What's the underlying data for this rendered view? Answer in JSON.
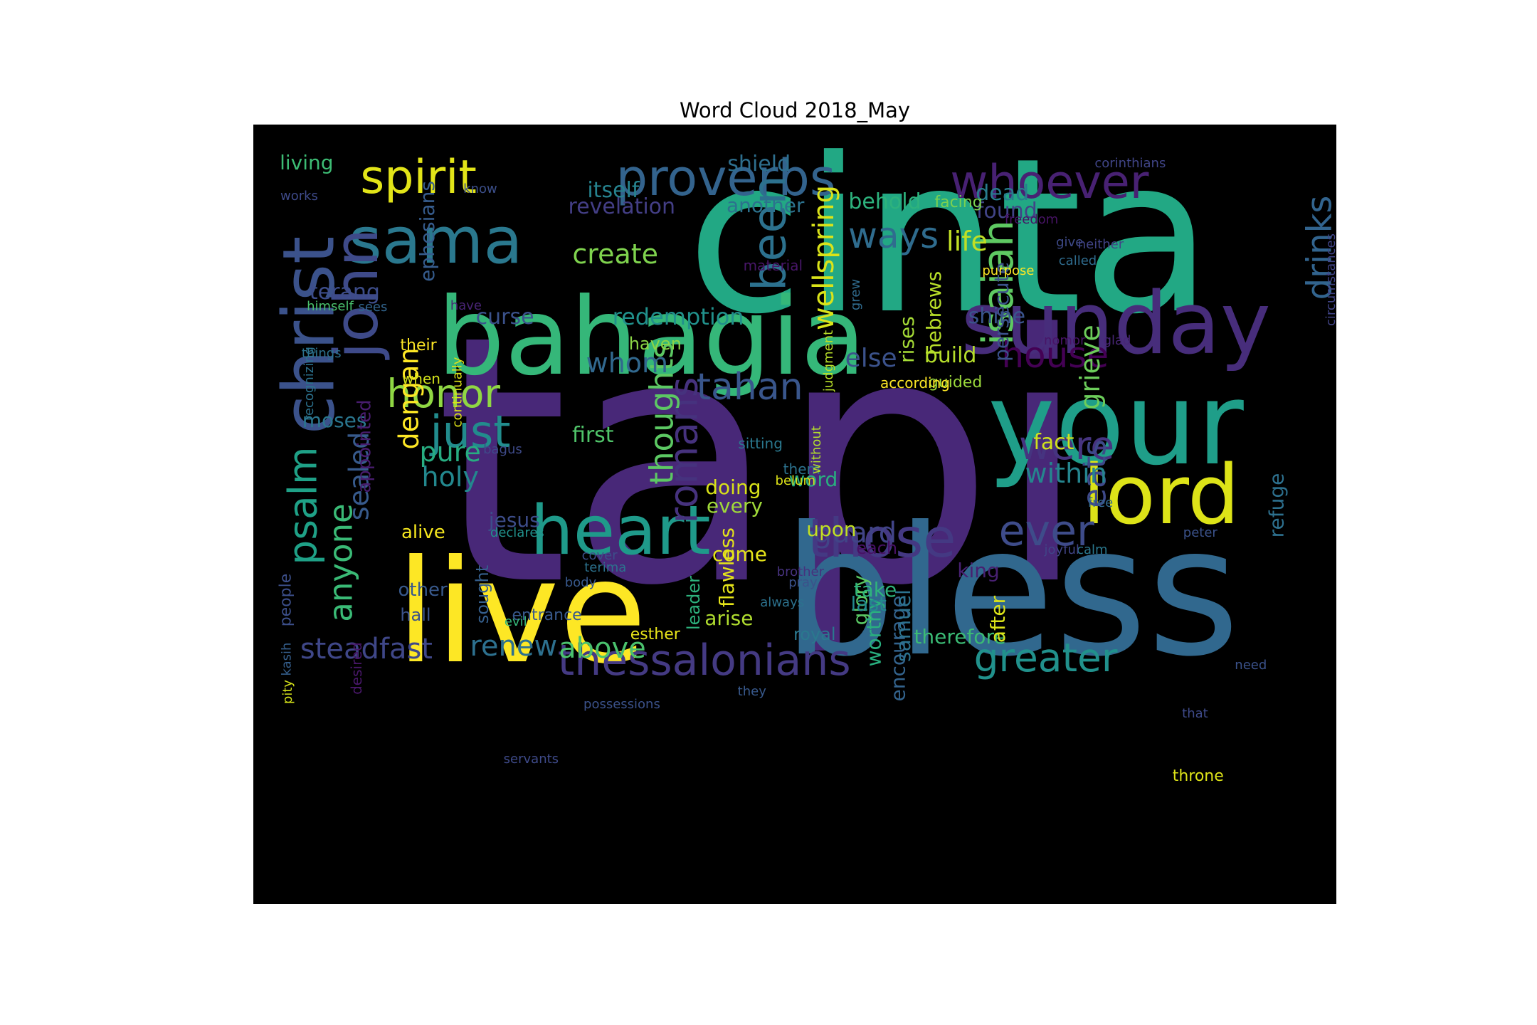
{
  "chart_data": {
    "type": "wordcloud",
    "title": "Word Cloud 2018_May",
    "background": "#000000",
    "colormap": "viridis",
    "words": [
      {
        "text": "tapi",
        "rank": 1,
        "color": "#482878",
        "rotate": false
      },
      {
        "text": "cinta",
        "rank": 2,
        "color": "#22a884",
        "rotate": false
      },
      {
        "text": "bless",
        "rank": 3,
        "color": "#31688e",
        "rotate": false
      },
      {
        "text": "live",
        "rank": 4,
        "color": "#fde725",
        "rotate": false
      },
      {
        "text": "your",
        "rank": 5,
        "color": "#1f9e89",
        "rotate": false
      },
      {
        "text": "bahagia",
        "rank": 6,
        "color": "#35b779",
        "rotate": false
      },
      {
        "text": "sunday",
        "rank": 7,
        "color": "#472d7b",
        "rotate": false
      },
      {
        "text": "lord",
        "rank": 8,
        "color": "#dde318",
        "rotate": false
      },
      {
        "text": "heart",
        "rank": 9,
        "color": "#1f9a8a",
        "rotate": false
      },
      {
        "text": "christ",
        "rank": 10,
        "color": "#3b528b",
        "rotate": true
      },
      {
        "text": "sama",
        "rank": 11,
        "color": "#2a788e",
        "rotate": false
      },
      {
        "text": "those",
        "rank": 12,
        "color": "#443983",
        "rotate": false
      },
      {
        "text": "john",
        "rank": 13,
        "color": "#3e4a89",
        "rotate": true
      },
      {
        "text": "proverbs",
        "rank": 14,
        "color": "#33638d",
        "rotate": false
      },
      {
        "text": "whoever",
        "rank": 15,
        "color": "#482173",
        "rotate": false
      },
      {
        "text": "spirit",
        "rank": 16,
        "color": "#e2e418",
        "rotate": false
      },
      {
        "text": "thessalonians",
        "rank": 17,
        "color": "#443a83",
        "rotate": false
      },
      {
        "text": "isaiah",
        "rank": 18,
        "color": "#5ec962",
        "rotate": true
      },
      {
        "text": "ever",
        "rank": 19,
        "color": "#3e4c8a",
        "rotate": false
      },
      {
        "text": "honor",
        "rank": 20,
        "color": "#90d743",
        "rotate": false
      },
      {
        "text": "romans",
        "rank": 21,
        "color": "#46327e",
        "rotate": true
      },
      {
        "text": "were",
        "rank": 22,
        "color": "#463480",
        "rotate": false
      },
      {
        "text": "just",
        "rank": 23,
        "color": "#228c8d",
        "rotate": false
      },
      {
        "text": "greater",
        "rank": 24,
        "color": "#21918c",
        "rotate": false
      },
      {
        "text": "psalm",
        "rank": 25,
        "color": "#1fa187",
        "rotate": true
      },
      {
        "text": "house",
        "rank": 26,
        "color": "#440154",
        "rotate": false
      },
      {
        "text": "tahan",
        "rank": 27,
        "color": "#39568c",
        "rotate": false
      },
      {
        "text": "been",
        "rank": 28,
        "color": "#2c718e",
        "rotate": true
      },
      {
        "text": "ways",
        "rank": 29,
        "color": "#2f6c8e",
        "rotate": false
      },
      {
        "text": "drinks",
        "rank": 30,
        "color": "#32648e",
        "rotate": true
      },
      {
        "text": "thoughts",
        "rank": 31,
        "color": "#5cc863",
        "rotate": true
      },
      {
        "text": "anyone",
        "rank": 32,
        "color": "#3aba76",
        "rotate": true
      },
      {
        "text": "steadfast",
        "rank": 33,
        "color": "#3f4788",
        "rotate": false
      },
      {
        "text": "eats",
        "rank": 34,
        "color": "#3e4989",
        "rotate": true
      },
      {
        "text": "renew",
        "rank": 35,
        "color": "#2d708e",
        "rotate": false
      },
      {
        "text": "above",
        "rank": 36,
        "color": "#4ac16d",
        "rotate": false
      },
      {
        "text": "wellspring",
        "rank": 37,
        "color": "#dae319",
        "rotate": true
      },
      {
        "text": "create",
        "rank": 38,
        "color": "#7fd34e",
        "rotate": false
      },
      {
        "text": "guard",
        "rank": 39,
        "color": "#414487",
        "rotate": false
      },
      {
        "text": "within",
        "rank": 40,
        "color": "#25858e",
        "rotate": false
      },
      {
        "text": "life",
        "rank": 41,
        "color": "#c0df25",
        "rotate": false
      },
      {
        "text": "dengan",
        "rank": 42,
        "color": "#fde725",
        "rotate": true
      },
      {
        "text": "grieve",
        "rank": 43,
        "color": "#6ccd5a",
        "rotate": true
      },
      {
        "text": "pure",
        "rank": 44,
        "color": "#27ad81",
        "rotate": false
      },
      {
        "text": "holy",
        "rank": 45,
        "color": "#23888e",
        "rotate": false
      },
      {
        "text": "sealed",
        "rank": 46,
        "color": "#375a8c",
        "rotate": true
      },
      {
        "text": "whom",
        "rank": 47,
        "color": "#31688e",
        "rotate": false
      },
      {
        "text": "revelation",
        "rank": 48,
        "color": "#433e85",
        "rotate": false
      },
      {
        "text": "else",
        "rank": 49,
        "color": "#3b528b",
        "rotate": false
      },
      {
        "text": "behold",
        "rank": 50,
        "color": "#2db27d",
        "rotate": false
      },
      {
        "text": "dead",
        "rank": 51,
        "color": "#287c8e",
        "rotate": false
      },
      {
        "text": "itself",
        "rank": 52,
        "color": "#26828e",
        "rotate": false
      },
      {
        "text": "redemption",
        "rank": 53,
        "color": "#21918c",
        "rotate": false
      },
      {
        "text": "curse",
        "rank": 54,
        "color": "#3b528b",
        "rotate": false
      },
      {
        "text": "terang",
        "rank": 55,
        "color": "#3d4d8a",
        "rotate": false
      },
      {
        "text": "first",
        "rank": 56,
        "color": "#50c46a",
        "rotate": false
      },
      {
        "text": "ephesians",
        "rank": 57,
        "color": "#365c8d",
        "rotate": true
      },
      {
        "text": "hebrews",
        "rank": 58,
        "color": "#b8de29",
        "rotate": true
      },
      {
        "text": "build",
        "rank": 59,
        "color": "#b5de2b",
        "rotate": false
      },
      {
        "text": "fact",
        "rank": 60,
        "color": "#d0e11c",
        "rotate": false
      },
      {
        "text": "shine",
        "rank": 61,
        "color": "#3a548c",
        "rotate": false
      },
      {
        "text": "flawless",
        "rank": 62,
        "color": "#e5e419",
        "rotate": true
      },
      {
        "text": "rises",
        "rank": 63,
        "color": "#a5db36",
        "rotate": true
      },
      {
        "text": "persecute",
        "rank": 64,
        "color": "#3b518b",
        "rotate": true
      },
      {
        "text": "shield",
        "rank": 65,
        "color": "#2e6f8e",
        "rotate": false
      },
      {
        "text": "another",
        "rank": 66,
        "color": "#2c728e",
        "rotate": false
      },
      {
        "text": "found",
        "rank": 67,
        "color": "#414487",
        "rotate": false
      },
      {
        "text": "jesus",
        "rank": 68,
        "color": "#3d4d8a",
        "rotate": false
      },
      {
        "text": "moses",
        "rank": 69,
        "color": "#2a768e",
        "rotate": false
      },
      {
        "text": "doing",
        "rank": 70,
        "color": "#d8e219",
        "rotate": false
      },
      {
        "text": "every",
        "rank": 71,
        "color": "#a0da39",
        "rotate": false
      },
      {
        "text": "word",
        "rank": 72,
        "color": "#29af7f",
        "rotate": false
      },
      {
        "text": "upon",
        "rank": 73,
        "color": "#c2df23",
        "rotate": false
      },
      {
        "text": "glory",
        "rank": 74,
        "color": "#5ac864",
        "rotate": true
      },
      {
        "text": "take",
        "rank": 75,
        "color": "#2fb47c",
        "rotate": false
      },
      {
        "text": "therefore",
        "rank": 76,
        "color": "#3bbb75",
        "rotate": false
      },
      {
        "text": "encourage",
        "rank": 77,
        "color": "#33638d",
        "rotate": true
      },
      {
        "text": "refuge",
        "rank": 78,
        "color": "#2d708e",
        "rotate": true
      },
      {
        "text": "builder",
        "rank": 79,
        "color": "#34618d",
        "rotate": true
      },
      {
        "text": "king",
        "rank": 80,
        "color": "#482071",
        "rotate": false
      },
      {
        "text": "worthy",
        "rank": 81,
        "color": "#29af7f",
        "rotate": true
      },
      {
        "text": "samuel",
        "rank": 82,
        "color": "#2c728e",
        "rotate": true
      },
      {
        "text": "after",
        "rank": 83,
        "color": "#dce319",
        "rotate": true
      },
      {
        "text": "last",
        "rank": 84,
        "color": "#23898e",
        "rotate": false
      },
      {
        "text": "living",
        "rank": 85,
        "color": "#3dbc74",
        "rotate": false
      },
      {
        "text": "alive",
        "rank": 86,
        "color": "#f4e61e",
        "rotate": false
      },
      {
        "text": "other",
        "rank": 87,
        "color": "#38598c",
        "rotate": false
      },
      {
        "text": "appointed",
        "rank": 88,
        "color": "#481c6e",
        "rotate": true
      },
      {
        "text": "come",
        "rank": 89,
        "color": "#e5e419",
        "rotate": false
      },
      {
        "text": "arise",
        "rank": 90,
        "color": "#b0dd2f",
        "rotate": false
      },
      {
        "text": "haven",
        "rank": 91,
        "color": "#8bd646",
        "rotate": false
      },
      {
        "text": "leader",
        "rank": 92,
        "color": "#2db27d",
        "rotate": true
      },
      {
        "text": "sought",
        "rank": 93,
        "color": "#355f8d",
        "rotate": true
      },
      {
        "text": "people",
        "rank": 94,
        "color": "#3c4f8a",
        "rotate": true
      },
      {
        "text": "facing",
        "rank": 95,
        "color": "#7ad151",
        "rotate": false
      },
      {
        "text": "each",
        "rank": 96,
        "color": "#471164",
        "rotate": false
      },
      {
        "text": "royal",
        "rank": 97,
        "color": "#2a788e",
        "rotate": false
      },
      {
        "text": "hall",
        "rank": 98,
        "color": "#3b528b",
        "rotate": false
      },
      {
        "text": "entrance",
        "rank": 99,
        "color": "#38598c",
        "rotate": false
      },
      {
        "text": "esther",
        "rank": 100,
        "color": "#e7e419",
        "rotate": false
      },
      {
        "text": "guided",
        "rank": 101,
        "color": "#9bd93c",
        "rotate": false
      },
      {
        "text": "their",
        "rank": 102,
        "color": "#fde725",
        "rotate": false
      },
      {
        "text": "when",
        "rank": 103,
        "color": "#d2e21b",
        "rotate": false
      },
      {
        "text": "sitting",
        "rank": 104,
        "color": "#2a788e",
        "rotate": false
      },
      {
        "text": "them",
        "rank": 105,
        "color": "#2c728e",
        "rotate": false
      },
      {
        "text": "according",
        "rank": 106,
        "color": "#fde725",
        "rotate": false
      },
      {
        "text": "material",
        "rank": 107,
        "color": "#481668",
        "rotate": false
      },
      {
        "text": "desired",
        "rank": 108,
        "color": "#481769",
        "rotate": true
      },
      {
        "text": "purpose",
        "rank": 109,
        "color": "#fde725",
        "rotate": false
      },
      {
        "text": "corinthians",
        "rank": 110,
        "color": "#404588",
        "rotate": false
      },
      {
        "text": "judgment",
        "rank": 111,
        "color": "#b8de29",
        "rotate": true
      },
      {
        "text": "grew",
        "rank": 112,
        "color": "#2f6b8e",
        "rotate": true
      },
      {
        "text": "freedom",
        "rank": 113,
        "color": "#471365",
        "rotate": false
      },
      {
        "text": "continually",
        "rank": 114,
        "color": "#dde318",
        "rotate": true
      },
      {
        "text": "without",
        "rank": 115,
        "color": "#b2dd2d",
        "rotate": true
      },
      {
        "text": "works",
        "rank": 116,
        "color": "#3e4a89",
        "rotate": false
      },
      {
        "text": "know",
        "rank": 117,
        "color": "#3c4f8a",
        "rotate": false
      },
      {
        "text": "give",
        "rank": 118,
        "color": "#3e4a89",
        "rotate": false
      },
      {
        "text": "called",
        "rank": 119,
        "color": "#2f6c8e",
        "rotate": false
      },
      {
        "text": "neither",
        "rank": 120,
        "color": "#414487",
        "rotate": false
      },
      {
        "text": "himself",
        "rank": 121,
        "color": "#4ac16d",
        "rotate": false
      },
      {
        "text": "have",
        "rank": 122,
        "color": "#482475",
        "rotate": false
      },
      {
        "text": "sees",
        "rank": 123,
        "color": "#32658e",
        "rotate": false
      },
      {
        "text": "nomor",
        "rank": 124,
        "color": "#481467",
        "rotate": false
      },
      {
        "text": "glad",
        "rank": 125,
        "color": "#482677",
        "rotate": false
      },
      {
        "text": "circumstances",
        "rank": 126,
        "color": "#414487",
        "rotate": true
      },
      {
        "text": "things",
        "rank": 127,
        "color": "#2c728e",
        "rotate": false
      },
      {
        "text": "recognizing",
        "rank": 128,
        "color": "#2c728e",
        "rotate": true
      },
      {
        "text": "bagus",
        "rank": 129,
        "color": "#3e4a89",
        "rotate": false
      },
      {
        "text": "belum",
        "rank": 130,
        "color": "#dde318",
        "rotate": false
      },
      {
        "text": "free",
        "rank": 131,
        "color": "#31688e",
        "rotate": false
      },
      {
        "text": "peter",
        "rank": 132,
        "color": "#3b528b",
        "rotate": false
      },
      {
        "text": "declares",
        "rank": 133,
        "color": "#21918c",
        "rotate": false
      },
      {
        "text": "calm",
        "rank": 134,
        "color": "#2a788e",
        "rotate": false
      },
      {
        "text": "joyful",
        "rank": 135,
        "color": "#414487",
        "rotate": false
      },
      {
        "text": "cover",
        "rank": 136,
        "color": "#3c4f8a",
        "rotate": false
      },
      {
        "text": "terima",
        "rank": 137,
        "color": "#2c728e",
        "rotate": false
      },
      {
        "text": "body",
        "rank": 138,
        "color": "#38598c",
        "rotate": false
      },
      {
        "text": "brother",
        "rank": 139,
        "color": "#46327e",
        "rotate": false
      },
      {
        "text": "pray",
        "rank": 140,
        "color": "#3b528b",
        "rotate": false
      },
      {
        "text": "always",
        "rank": 141,
        "color": "#2c728e",
        "rotate": false
      },
      {
        "text": "evil",
        "rank": 142,
        "color": "#35b779",
        "rotate": false
      },
      {
        "text": "kasih",
        "rank": 143,
        "color": "#355f8d",
        "rotate": true
      },
      {
        "text": "pity",
        "rank": 144,
        "color": "#d5e21a",
        "rotate": true
      },
      {
        "text": "possessions",
        "rank": 145,
        "color": "#3b528b",
        "rotate": false
      },
      {
        "text": "they",
        "rank": 146,
        "color": "#38598c",
        "rotate": false
      },
      {
        "text": "need",
        "rank": 147,
        "color": "#3b528b",
        "rotate": false
      },
      {
        "text": "that",
        "rank": 148,
        "color": "#3e4a89",
        "rotate": false
      },
      {
        "text": "servants",
        "rank": 149,
        "color": "#3e4a89",
        "rotate": false
      },
      {
        "text": "throne",
        "rank": 150,
        "color": "#dde318",
        "rotate": false
      }
    ]
  }
}
